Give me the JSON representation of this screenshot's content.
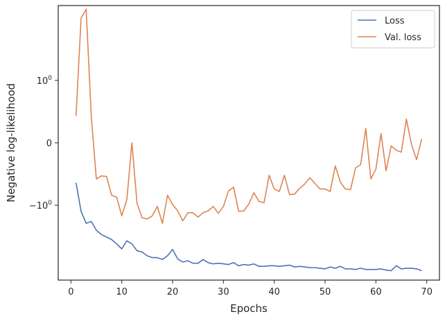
{
  "chart_data": {
    "type": "line",
    "xlabel": "Epochs",
    "ylabel": "Negative log-likelihood",
    "yscale": "symlog",
    "xlim": [
      -2.5,
      72.5
    ],
    "ylim_transformed": [
      -2.2,
      2.2
    ],
    "x_ticks": [
      {
        "value": 0,
        "label": "0"
      },
      {
        "value": 10,
        "label": "10"
      },
      {
        "value": 20,
        "label": "20"
      },
      {
        "value": 30,
        "label": "30"
      },
      {
        "value": 40,
        "label": "40"
      },
      {
        "value": 50,
        "label": "50"
      },
      {
        "value": 60,
        "label": "60"
      },
      {
        "value": 70,
        "label": "70"
      }
    ],
    "y_ticks": [
      {
        "position": 1,
        "base": "10",
        "exp": "0",
        "sign": ""
      },
      {
        "position": 0,
        "base": "0",
        "exp": "",
        "sign": ""
      },
      {
        "position": -1,
        "base": "10",
        "exp": "0",
        "sign": "−"
      }
    ],
    "legend": {
      "placement": "top-right"
    },
    "series": [
      {
        "name": "Loss",
        "color": "#4c72b0",
        "x": [
          1,
          2,
          3,
          4,
          5,
          6,
          7,
          8,
          9,
          10,
          11,
          12,
          13,
          14,
          15,
          16,
          17,
          18,
          19,
          20,
          21,
          22,
          23,
          24,
          25,
          26,
          27,
          28,
          29,
          30,
          31,
          32,
          33,
          34,
          35,
          36,
          37,
          38,
          39,
          40,
          41,
          42,
          43,
          44,
          45,
          46,
          47,
          48,
          49,
          50,
          51,
          52,
          53,
          54,
          55,
          56,
          57,
          58,
          59,
          60,
          61,
          62,
          63,
          64,
          65,
          66,
          67,
          68,
          69
        ],
        "y": [
          -0.64,
          -1.1,
          -1.29,
          -1.26,
          -1.4,
          -1.47,
          -1.51,
          -1.55,
          -1.62,
          -1.7,
          -1.57,
          -1.62,
          -1.73,
          -1.75,
          -1.81,
          -1.84,
          -1.84,
          -1.87,
          -1.81,
          -1.71,
          -1.86,
          -1.91,
          -1.89,
          -1.93,
          -1.93,
          -1.87,
          -1.92,
          -1.94,
          -1.93,
          -1.94,
          -1.95,
          -1.92,
          -1.97,
          -1.95,
          -1.96,
          -1.94,
          -1.98,
          -1.98,
          -1.97,
          -1.97,
          -1.98,
          -1.97,
          -1.96,
          -1.99,
          -1.98,
          -1.99,
          -2.0,
          -2.0,
          -2.01,
          -2.02,
          -1.99,
          -2.01,
          -1.98,
          -2.02,
          -2.02,
          -2.03,
          -2.01,
          -2.03,
          -2.03,
          -2.03,
          -2.02,
          -2.04,
          -2.05,
          -1.97,
          -2.02,
          -2.01,
          -2.01,
          -2.02,
          -2.05
        ]
      },
      {
        "name": "Val. loss",
        "color": "#dd8452",
        "x": [
          1,
          2,
          3,
          4,
          5,
          6,
          7,
          8,
          9,
          10,
          11,
          12,
          13,
          14,
          15,
          16,
          17,
          18,
          19,
          20,
          21,
          22,
          23,
          24,
          25,
          26,
          27,
          28,
          29,
          30,
          31,
          32,
          33,
          34,
          35,
          36,
          37,
          38,
          39,
          40,
          41,
          42,
          43,
          44,
          45,
          46,
          47,
          48,
          49,
          50,
          51,
          52,
          53,
          54,
          55,
          56,
          57,
          58,
          59,
          60,
          61,
          62,
          63,
          64,
          65,
          66,
          67,
          68,
          69
        ],
        "y": [
          0.43,
          2.0,
          2.14,
          0.42,
          -0.58,
          -0.53,
          -0.54,
          -0.84,
          -0.87,
          -1.17,
          -0.91,
          0.0,
          -0.97,
          -1.2,
          -1.22,
          -1.17,
          -1.02,
          -1.29,
          -0.84,
          -0.99,
          -1.09,
          -1.25,
          -1.12,
          -1.12,
          -1.19,
          -1.12,
          -1.09,
          -1.02,
          -1.13,
          -1.02,
          -0.77,
          -0.71,
          -1.1,
          -1.09,
          -0.98,
          -0.8,
          -0.94,
          -0.96,
          -0.52,
          -0.74,
          -0.78,
          -0.52,
          -0.83,
          -0.82,
          -0.73,
          -0.66,
          -0.56,
          -0.65,
          -0.74,
          -0.74,
          -0.78,
          -0.37,
          -0.63,
          -0.74,
          -0.75,
          -0.4,
          -0.35,
          0.23,
          -0.58,
          -0.42,
          0.15,
          -0.45,
          -0.05,
          -0.12,
          -0.15,
          0.38,
          -0.03,
          -0.27,
          0.06
        ]
      }
    ]
  }
}
